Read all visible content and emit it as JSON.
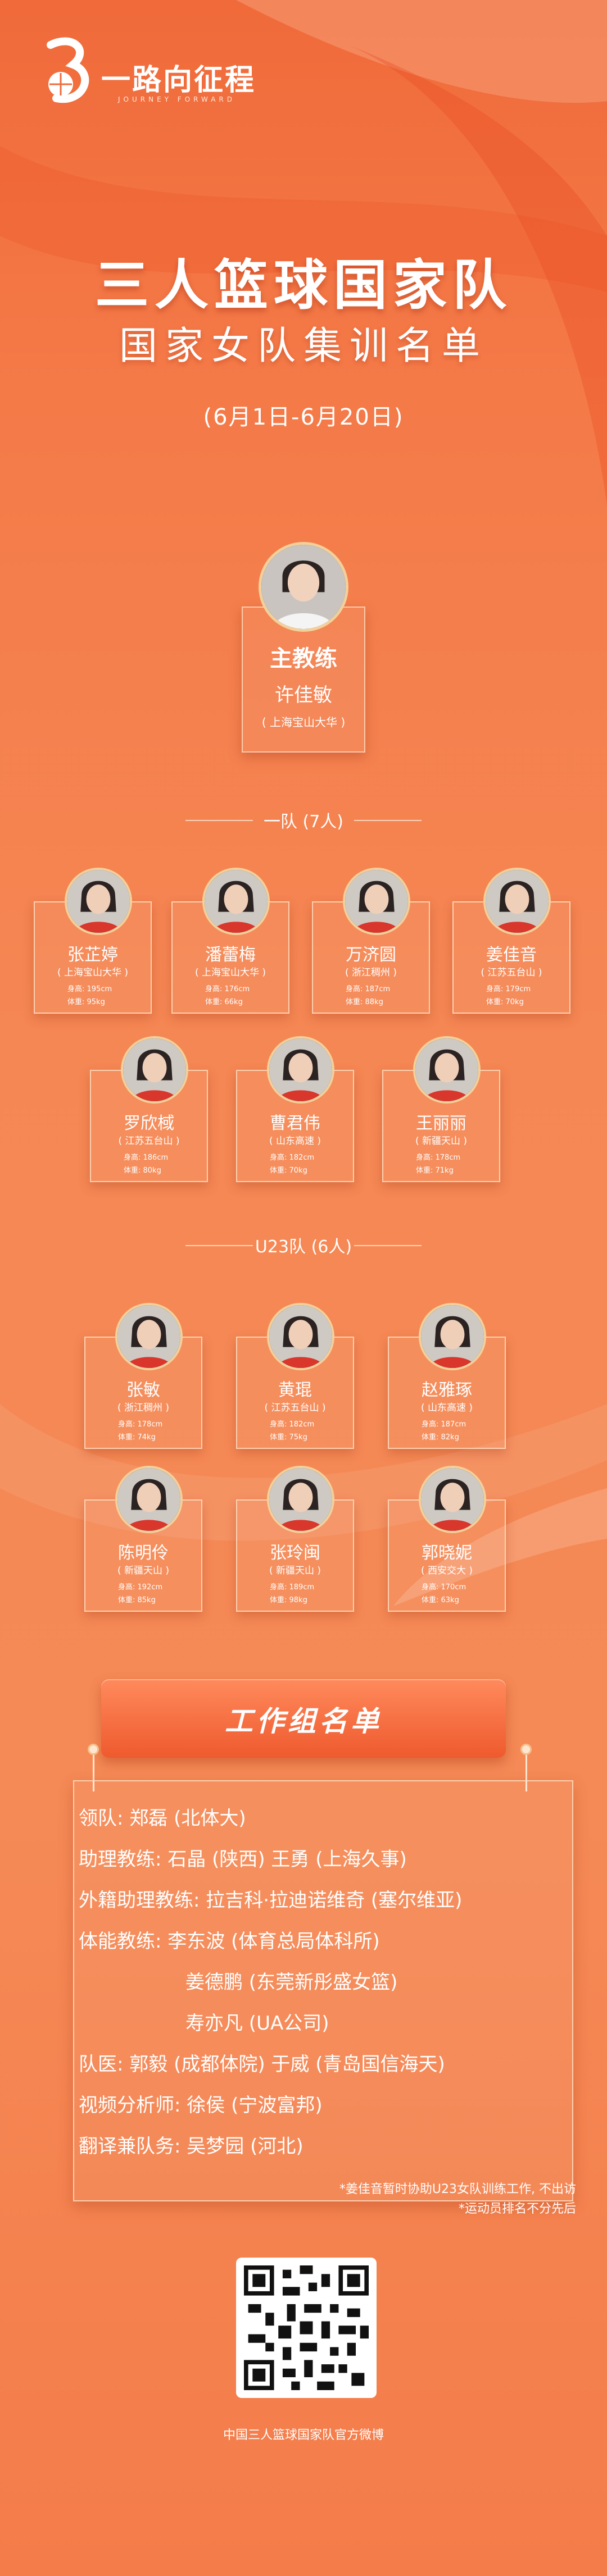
{
  "logo": {
    "text": "一路向征程",
    "sub": "JOURNEY FORWARD"
  },
  "title": {
    "main": "三人篮球国家队",
    "sub": "国家女队集训名单",
    "date": "(6月1日-6月20日)"
  },
  "coach": {
    "role": "主教练",
    "name": "许佳敏",
    "org": "( 上海宝山大华 )"
  },
  "team1": {
    "heading": "一队 (7人)",
    "players": [
      {
        "name": "张芷婷",
        "org": "( 上海宝山大华 )",
        "height": "身高: 195cm",
        "weight": "体重: 95kg"
      },
      {
        "name": "潘蕾梅",
        "org": "( 上海宝山大华 )",
        "height": "身高: 176cm",
        "weight": "体重: 66kg"
      },
      {
        "name": "万济圆",
        "org": "( 浙江稠州 )",
        "height": "身高: 187cm",
        "weight": "体重: 88kg"
      },
      {
        "name": "姜佳音",
        "org": "( 江苏五台山 )",
        "height": "身高: 179cm",
        "weight": "体重: 70kg"
      },
      {
        "name": "罗欣棫",
        "org": "( 江苏五台山 )",
        "height": "身高: 186cm",
        "weight": "体重: 80kg"
      },
      {
        "name": "曹君伟",
        "org": "( 山东高速 )",
        "height": "身高: 182cm",
        "weight": "体重: 70kg"
      },
      {
        "name": "王丽丽",
        "org": "( 新疆天山 )",
        "height": "身高: 178cm",
        "weight": "体重: 71kg"
      }
    ]
  },
  "team2": {
    "heading": "U23队 (6人)",
    "players": [
      {
        "name": "张敏",
        "org": "( 浙江稠州 )",
        "height": "身高: 178cm",
        "weight": "体重: 74kg"
      },
      {
        "name": "黄琨",
        "org": "( 江苏五台山 )",
        "height": "身高: 182cm",
        "weight": "体重: 75kg"
      },
      {
        "name": "赵雅琢",
        "org": "( 山东高速 )",
        "height": "身高: 187cm",
        "weight": "体重: 82kg"
      },
      {
        "name": "陈明伶",
        "org": "( 新疆天山 )",
        "height": "身高: 192cm",
        "weight": "体重: 85kg"
      },
      {
        "name": "张玲闽",
        "org": "( 新疆天山 )",
        "height": "身高: 189cm",
        "weight": "体重: 98kg"
      },
      {
        "name": "郭晓妮",
        "org": "( 西安交大 )",
        "height": "身高: 170cm",
        "weight": "体重: 63kg"
      }
    ]
  },
  "staff": {
    "title": "工作组名单",
    "rows": [
      "领队: 郑磊 (北体大)",
      "助理教练: 石晶 (陕西)  王勇 (上海久事)",
      "外籍助理教练: 拉吉科·拉迪诺维奇 (塞尔维亚)",
      "体能教练: 李东波 (体育总局体科所)",
      "姜德鹏 (东莞新彤盛女篮)",
      "寿亦凡 (UA公司)",
      "队医: 郭毅 (成都体院)  于威 (青岛国信海天)",
      "视频分析师: 徐侯 (宁波富邦)",
      "翻译兼队务: 吴梦园 (河北)"
    ]
  },
  "notes": [
    "*姜佳音暂时协助U23女队训练工作, 不出访",
    "*运动员排名不分先后"
  ],
  "footer": "中国三人篮球国家队官方微博",
  "colors": {
    "accent": "#f47a48",
    "gold": "#f3d09a",
    "deep": "#e04a24"
  }
}
